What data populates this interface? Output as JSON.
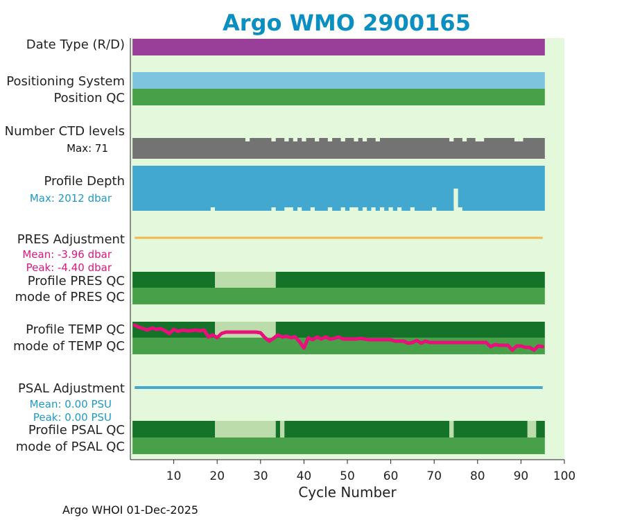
{
  "chart_data": {
    "type": "bar",
    "title": "Argo WMO 2900165",
    "xlabel": "Cycle Number",
    "xlim": [
      0,
      100
    ],
    "xticks": [
      10,
      20,
      30,
      40,
      50,
      60,
      70,
      80,
      90,
      100
    ],
    "cycles": [
      1,
      95
    ],
    "rows": {
      "date_type": {
        "label": "Date Type (R/D)",
        "color": "#993f99"
      },
      "positioning_system": {
        "label": "Positioning System",
        "color": "#7ec4df"
      },
      "position_qc": {
        "label": "Position QC",
        "color": "#48a048"
      },
      "ctd_levels": {
        "label": "Number CTD levels",
        "note": "Max: 71",
        "color": "#737373",
        "short_cycles": [
          27,
          33,
          36,
          38,
          40,
          43,
          46,
          49,
          52,
          54,
          57,
          74,
          77,
          80,
          81,
          89,
          90
        ]
      },
      "profile_depth": {
        "label": "Profile Depth",
        "note": "Max: 2012 dbar",
        "color": "#43a8cf",
        "shallow_cycles": [
          19,
          33,
          36,
          37,
          39,
          42,
          46,
          49,
          51,
          52,
          54,
          56,
          58,
          60,
          62,
          65,
          70
        ],
        "deep_cycles": [
          74,
          77
        ]
      },
      "pres_adjustment": {
        "label": "PRES Adjustment",
        "mean": "Mean: -3.96 dbar",
        "peak": "Peak: -4.40 dbar",
        "color": "#f2b84b"
      },
      "profile_pres_qc": {
        "label": "Profile PRES QC",
        "segments": [
          {
            "start": 1,
            "end": 19,
            "qc": "A"
          },
          {
            "start": 20,
            "end": 33,
            "qc": "pending"
          },
          {
            "start": 34,
            "end": 95,
            "qc": "A"
          }
        ]
      },
      "mode_pres_qc": {
        "label": "mode of PRES QC"
      },
      "profile_temp_qc": {
        "label": "Profile TEMP QC",
        "segments": [
          {
            "start": 1,
            "end": 19,
            "qc": "A"
          },
          {
            "start": 20,
            "end": 33,
            "qc": "pending"
          },
          {
            "start": 34,
            "end": 95,
            "qc": "A"
          }
        ]
      },
      "mode_temp_qc": {
        "label": "mode of TEMP QC"
      },
      "psal_adjustment": {
        "label": "PSAL Adjustment",
        "mean": "Mean: 0.00 PSU",
        "peak": "Peak: 0.00 PSU",
        "color": "#43a8cf"
      },
      "profile_psal_qc": {
        "label": "Profile PSAL QC",
        "segments": [
          {
            "start": 1,
            "end": 19,
            "qc": "A"
          },
          {
            "start": 20,
            "end": 33,
            "qc": "pending"
          },
          {
            "start": 34,
            "end": 34,
            "qc": "A"
          },
          {
            "start": 35,
            "end": 35,
            "qc": "pending"
          },
          {
            "start": 36,
            "end": 73,
            "qc": "A"
          },
          {
            "start": 74,
            "end": 74,
            "qc": "pending"
          },
          {
            "start": 75,
            "end": 91,
            "qc": "A"
          },
          {
            "start": 92,
            "end": 93,
            "qc": "pending"
          },
          {
            "start": 94,
            "end": 95,
            "qc": "A"
          }
        ]
      },
      "mode_psal_qc": {
        "label": "mode of PSAL QC"
      }
    },
    "temp_adjustment_trace": {
      "x": [
        1,
        2,
        3,
        4,
        5,
        6,
        7,
        8,
        9,
        10,
        11,
        12,
        13,
        14,
        15,
        16,
        17,
        18,
        19,
        20,
        21,
        22,
        23,
        24,
        25,
        26,
        27,
        28,
        29,
        30,
        31,
        32,
        33,
        34,
        35,
        36,
        37,
        38,
        39,
        40,
        41,
        42,
        43,
        44,
        45,
        46,
        47,
        48,
        49,
        50,
        51,
        52,
        53,
        54,
        55,
        56,
        57,
        58,
        59,
        60,
        61,
        62,
        63,
        64,
        65,
        66,
        67,
        68,
        69,
        70,
        71,
        72,
        73,
        74,
        75,
        76,
        77,
        78,
        79,
        80,
        81,
        82,
        83,
        84,
        85,
        86,
        87,
        88,
        89,
        90,
        91,
        92,
        93,
        94,
        95
      ],
      "y": [
        0.9,
        0.75,
        0.65,
        0.55,
        0.7,
        0.6,
        0.65,
        0.5,
        0.3,
        0.6,
        0.45,
        0.55,
        0.5,
        0.5,
        0.55,
        0.5,
        0.55,
        0.05,
        0.2,
        0.0,
        0.3,
        0.4,
        0.4,
        0.4,
        0.4,
        0.4,
        0.4,
        0.4,
        0.4,
        0.35,
        0.0,
        -0.25,
        -0.05,
        0.2,
        0.05,
        0.1,
        0.0,
        0.05,
        -0.3,
        -0.75,
        0.0,
        -0.15,
        0.05,
        -0.1,
        0.05,
        -0.1,
        -0.05,
        0.05,
        -0.1,
        -0.1,
        -0.1,
        -0.1,
        -0.05,
        -0.1,
        -0.15,
        -0.15,
        -0.15,
        -0.15,
        -0.15,
        -0.15,
        -0.25,
        -0.25,
        -0.25,
        -0.4,
        -0.35,
        -0.2,
        -0.4,
        -0.25,
        -0.35,
        -0.35,
        -0.35,
        -0.35,
        -0.35,
        -0.35,
        -0.35,
        -0.35,
        -0.35,
        -0.35,
        -0.35,
        -0.35,
        -0.35,
        -0.35,
        -0.65,
        -0.5,
        -0.55,
        -0.55,
        -0.55,
        -0.9,
        -0.6,
        -0.6,
        -0.7,
        -0.7,
        -0.9,
        -0.6,
        -0.65
      ],
      "color": "#e8107a"
    },
    "colors": {
      "plot_bg": "#e4f8dc",
      "qc_good": "#147229",
      "qc_pending": "#bcdcac",
      "mode": "#48a048",
      "stat_pres": "#e0157d",
      "stat_psal": "#1e9ac4"
    }
  },
  "footer": "Argo WHOI 01-Dec-2025"
}
